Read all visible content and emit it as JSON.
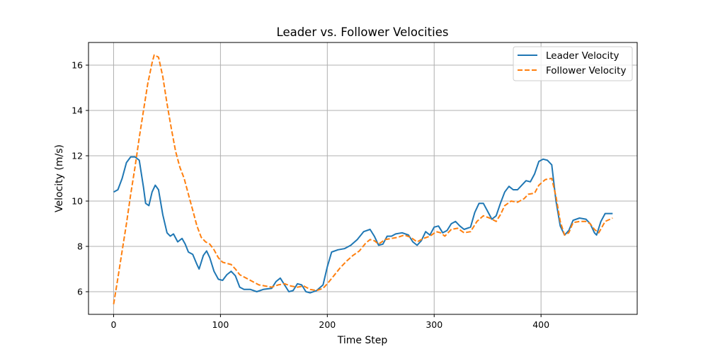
{
  "chart_data": {
    "type": "line",
    "title": "Leader vs. Follower Velocities",
    "xlabel": "Time Step",
    "ylabel": "Velocity (m/s)",
    "xlim": [
      -23.5,
      490
    ],
    "ylim": [
      5.0,
      17.0
    ],
    "xticks": [
      0,
      100,
      200,
      300,
      400
    ],
    "yticks": [
      6,
      8,
      10,
      12,
      14,
      16
    ],
    "grid": true,
    "legend_position": "top-right",
    "series": [
      {
        "name": "Leader Velocity",
        "color": "#1f77b4",
        "linestyle": "solid",
        "points": [
          [
            0,
            10.4
          ],
          [
            4,
            10.5
          ],
          [
            8,
            11.0
          ],
          [
            12,
            11.7
          ],
          [
            16,
            11.95
          ],
          [
            20,
            11.95
          ],
          [
            24,
            11.8
          ],
          [
            28,
            10.6
          ],
          [
            30,
            9.9
          ],
          [
            33,
            9.8
          ],
          [
            36,
            10.4
          ],
          [
            39,
            10.7
          ],
          [
            42,
            10.5
          ],
          [
            46,
            9.4
          ],
          [
            50,
            8.6
          ],
          [
            53,
            8.45
          ],
          [
            56,
            8.55
          ],
          [
            60,
            8.2
          ],
          [
            64,
            8.35
          ],
          [
            67,
            8.1
          ],
          [
            70,
            7.75
          ],
          [
            74,
            7.65
          ],
          [
            78,
            7.2
          ],
          [
            80,
            7.0
          ],
          [
            84,
            7.6
          ],
          [
            87,
            7.8
          ],
          [
            90,
            7.5
          ],
          [
            94,
            6.9
          ],
          [
            98,
            6.55
          ],
          [
            102,
            6.5
          ],
          [
            106,
            6.75
          ],
          [
            110,
            6.9
          ],
          [
            114,
            6.7
          ],
          [
            118,
            6.2
          ],
          [
            122,
            6.1
          ],
          [
            128,
            6.1
          ],
          [
            134,
            6.0
          ],
          [
            140,
            6.1
          ],
          [
            148,
            6.15
          ],
          [
            152,
            6.45
          ],
          [
            156,
            6.6
          ],
          [
            160,
            6.3
          ],
          [
            164,
            6.0
          ],
          [
            168,
            6.05
          ],
          [
            172,
            6.35
          ],
          [
            176,
            6.3
          ],
          [
            180,
            6.0
          ],
          [
            184,
            5.95
          ],
          [
            190,
            6.05
          ],
          [
            196,
            6.3
          ],
          [
            200,
            7.1
          ],
          [
            204,
            7.75
          ],
          [
            210,
            7.85
          ],
          [
            216,
            7.9
          ],
          [
            222,
            8.05
          ],
          [
            228,
            8.3
          ],
          [
            234,
            8.65
          ],
          [
            240,
            8.75
          ],
          [
            244,
            8.45
          ],
          [
            248,
            8.05
          ],
          [
            252,
            8.1
          ],
          [
            256,
            8.45
          ],
          [
            260,
            8.45
          ],
          [
            264,
            8.55
          ],
          [
            270,
            8.6
          ],
          [
            276,
            8.5
          ],
          [
            280,
            8.2
          ],
          [
            284,
            8.05
          ],
          [
            288,
            8.25
          ],
          [
            292,
            8.65
          ],
          [
            296,
            8.5
          ],
          [
            300,
            8.85
          ],
          [
            304,
            8.9
          ],
          [
            308,
            8.6
          ],
          [
            312,
            8.7
          ],
          [
            316,
            9.0
          ],
          [
            320,
            9.1
          ],
          [
            324,
            8.9
          ],
          [
            328,
            8.75
          ],
          [
            334,
            8.85
          ],
          [
            338,
            9.5
          ],
          [
            342,
            9.9
          ],
          [
            346,
            9.9
          ],
          [
            350,
            9.55
          ],
          [
            354,
            9.2
          ],
          [
            358,
            9.35
          ],
          [
            362,
            9.9
          ],
          [
            366,
            10.4
          ],
          [
            370,
            10.65
          ],
          [
            374,
            10.5
          ],
          [
            378,
            10.5
          ],
          [
            382,
            10.7
          ],
          [
            386,
            10.9
          ],
          [
            390,
            10.85
          ],
          [
            394,
            11.2
          ],
          [
            398,
            11.75
          ],
          [
            402,
            11.85
          ],
          [
            406,
            11.8
          ],
          [
            410,
            11.6
          ],
          [
            414,
            10.0
          ],
          [
            418,
            8.9
          ],
          [
            422,
            8.5
          ],
          [
            426,
            8.7
          ],
          [
            430,
            9.15
          ],
          [
            436,
            9.25
          ],
          [
            442,
            9.2
          ],
          [
            446,
            9.0
          ],
          [
            450,
            8.6
          ],
          [
            452,
            8.5
          ],
          [
            456,
            9.1
          ],
          [
            460,
            9.45
          ],
          [
            467,
            9.45
          ]
        ]
      },
      {
        "name": "Follower Velocity",
        "color": "#ff7f0e",
        "linestyle": "dashed",
        "points": [
          [
            0,
            5.45
          ],
          [
            4,
            6.6
          ],
          [
            8,
            7.8
          ],
          [
            12,
            9.0
          ],
          [
            16,
            10.3
          ],
          [
            20,
            11.5
          ],
          [
            24,
            12.8
          ],
          [
            28,
            14.0
          ],
          [
            32,
            15.2
          ],
          [
            36,
            16.1
          ],
          [
            38,
            16.45
          ],
          [
            42,
            16.35
          ],
          [
            46,
            15.5
          ],
          [
            50,
            14.3
          ],
          [
            54,
            13.2
          ],
          [
            58,
            12.2
          ],
          [
            62,
            11.5
          ],
          [
            66,
            11.0
          ],
          [
            70,
            10.3
          ],
          [
            74,
            9.6
          ],
          [
            78,
            8.9
          ],
          [
            82,
            8.4
          ],
          [
            86,
            8.2
          ],
          [
            90,
            8.1
          ],
          [
            94,
            7.85
          ],
          [
            98,
            7.5
          ],
          [
            102,
            7.3
          ],
          [
            106,
            7.25
          ],
          [
            110,
            7.2
          ],
          [
            114,
            7.0
          ],
          [
            118,
            6.75
          ],
          [
            124,
            6.6
          ],
          [
            130,
            6.45
          ],
          [
            136,
            6.3
          ],
          [
            142,
            6.25
          ],
          [
            148,
            6.2
          ],
          [
            154,
            6.3
          ],
          [
            160,
            6.35
          ],
          [
            166,
            6.25
          ],
          [
            172,
            6.2
          ],
          [
            178,
            6.25
          ],
          [
            184,
            6.1
          ],
          [
            190,
            6.05
          ],
          [
            196,
            6.15
          ],
          [
            200,
            6.35
          ],
          [
            206,
            6.7
          ],
          [
            212,
            7.05
          ],
          [
            218,
            7.35
          ],
          [
            224,
            7.6
          ],
          [
            230,
            7.8
          ],
          [
            236,
            8.15
          ],
          [
            240,
            8.3
          ],
          [
            244,
            8.25
          ],
          [
            248,
            8.1
          ],
          [
            254,
            8.3
          ],
          [
            260,
            8.35
          ],
          [
            266,
            8.4
          ],
          [
            272,
            8.5
          ],
          [
            278,
            8.4
          ],
          [
            284,
            8.2
          ],
          [
            290,
            8.35
          ],
          [
            296,
            8.45
          ],
          [
            302,
            8.65
          ],
          [
            306,
            8.6
          ],
          [
            310,
            8.45
          ],
          [
            316,
            8.75
          ],
          [
            322,
            8.8
          ],
          [
            328,
            8.6
          ],
          [
            334,
            8.65
          ],
          [
            340,
            9.1
          ],
          [
            346,
            9.35
          ],
          [
            352,
            9.25
          ],
          [
            358,
            9.1
          ],
          [
            362,
            9.4
          ],
          [
            366,
            9.8
          ],
          [
            372,
            10.0
          ],
          [
            378,
            9.95
          ],
          [
            384,
            10.1
          ],
          [
            388,
            10.3
          ],
          [
            394,
            10.35
          ],
          [
            398,
            10.7
          ],
          [
            404,
            10.95
          ],
          [
            410,
            11.0
          ],
          [
            414,
            10.2
          ],
          [
            418,
            9.1
          ],
          [
            422,
            8.5
          ],
          [
            426,
            8.6
          ],
          [
            430,
            9.05
          ],
          [
            436,
            9.1
          ],
          [
            442,
            9.1
          ],
          [
            446,
            9.0
          ],
          [
            450,
            8.75
          ],
          [
            454,
            8.6
          ],
          [
            460,
            9.1
          ],
          [
            467,
            9.25
          ]
        ]
      }
    ]
  }
}
